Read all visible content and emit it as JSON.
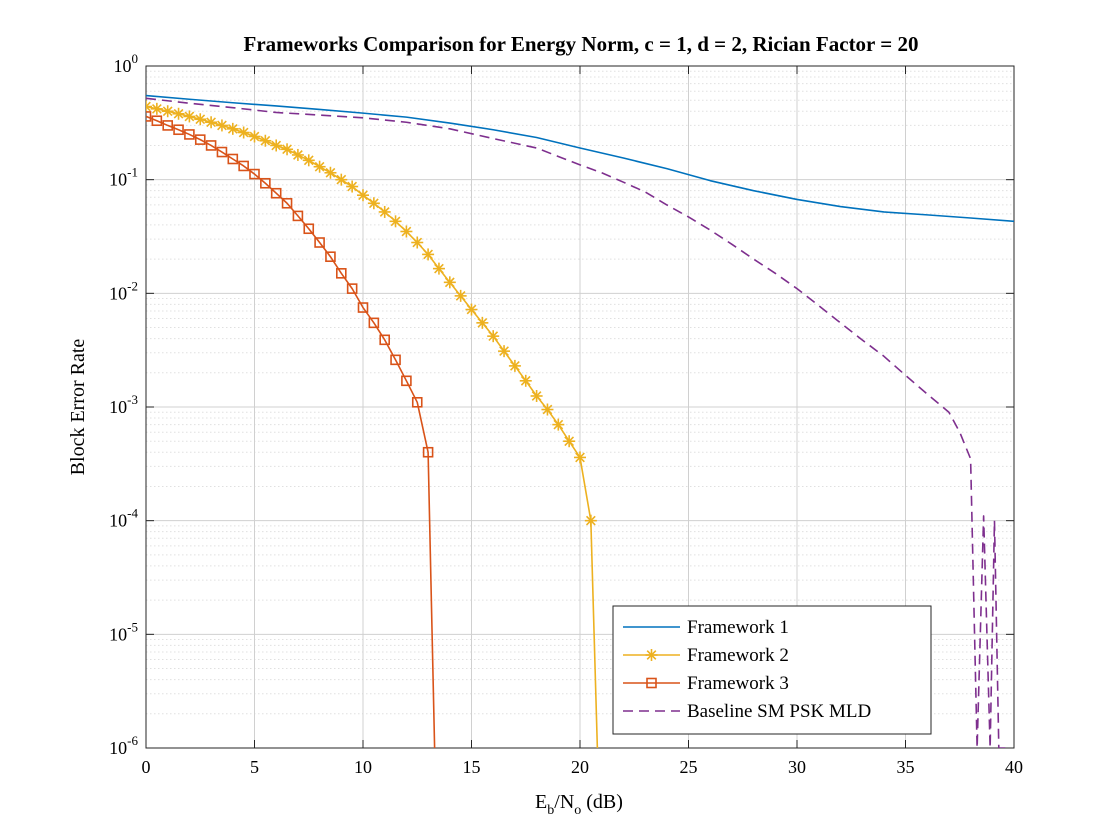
{
  "chart_data": {
    "type": "line",
    "title": "Frameworks Comparison for Energy Norm, c = 1, d = 2, Rician Factor = 20",
    "xlabel": {
      "base": "E",
      "sub1": "b",
      "mid": "/N",
      "sub2": "o",
      "tail": " (dB)"
    },
    "ylabel": "Block Error Rate",
    "xlim": [
      0,
      40
    ],
    "ylim": [
      1e-06,
      1
    ],
    "yscale": "log",
    "grid": true,
    "legend_position": "bottom-right",
    "x_ticks": [
      {
        "value": 0,
        "label": "0"
      },
      {
        "value": 5,
        "label": "5"
      },
      {
        "value": 10,
        "label": "10"
      },
      {
        "value": 15,
        "label": "15"
      },
      {
        "value": 20,
        "label": "20"
      },
      {
        "value": 25,
        "label": "25"
      },
      {
        "value": 30,
        "label": "30"
      },
      {
        "value": 35,
        "label": "35"
      },
      {
        "value": 40,
        "label": "40"
      }
    ],
    "y_ticks": [
      {
        "exp": 0,
        "base": "10",
        "power": "0"
      },
      {
        "exp": -1,
        "base": "10",
        "power": "-1"
      },
      {
        "exp": -2,
        "base": "10",
        "power": "-2"
      },
      {
        "exp": -3,
        "base": "10",
        "power": "-3"
      },
      {
        "exp": -4,
        "base": "10",
        "power": "-4"
      },
      {
        "exp": -5,
        "base": "10",
        "power": "-5"
      },
      {
        "exp": -6,
        "base": "10",
        "power": "-6"
      }
    ],
    "series": [
      {
        "name": "Framework 1",
        "color": "#0072BD",
        "line": "solid",
        "marker": "none",
        "x": [
          0,
          2,
          4,
          6,
          8,
          10,
          12,
          14,
          16,
          18,
          20,
          22,
          24,
          26,
          28,
          30,
          32,
          34,
          36,
          38,
          40
        ],
        "y": [
          0.55,
          0.51,
          0.475,
          0.445,
          0.415,
          0.385,
          0.355,
          0.315,
          0.275,
          0.235,
          0.19,
          0.155,
          0.125,
          0.098,
          0.08,
          0.067,
          0.058,
          0.052,
          0.049,
          0.046,
          0.043
        ]
      },
      {
        "name": "Framework 2",
        "color": "#EDB120",
        "line": "solid",
        "marker": "asterisk",
        "x": [
          0,
          0.5,
          1,
          1.5,
          2,
          2.5,
          3,
          3.5,
          4,
          4.5,
          5,
          5.5,
          6,
          6.5,
          7,
          7.5,
          8,
          8.5,
          9,
          9.5,
          10,
          10.5,
          11,
          11.5,
          12,
          12.5,
          13,
          13.5,
          14,
          14.5,
          15,
          15.5,
          16,
          16.5,
          17,
          17.5,
          18,
          18.5,
          19,
          19.5,
          20,
          20.5,
          20.8
        ],
        "y": [
          0.44,
          0.42,
          0.4,
          0.38,
          0.36,
          0.34,
          0.32,
          0.3,
          0.28,
          0.26,
          0.24,
          0.22,
          0.2,
          0.185,
          0.165,
          0.148,
          0.13,
          0.115,
          0.1,
          0.087,
          0.073,
          0.062,
          0.052,
          0.043,
          0.035,
          0.028,
          0.022,
          0.0165,
          0.0125,
          0.0095,
          0.0072,
          0.0055,
          0.0042,
          0.0031,
          0.0023,
          0.0017,
          0.00125,
          0.00095,
          0.0007,
          0.0005,
          0.00036,
          0.0001,
          1e-06
        ]
      },
      {
        "name": "Framework 3",
        "color": "#D95319",
        "line": "solid",
        "marker": "square",
        "x": [
          0,
          0.5,
          1,
          1.5,
          2,
          2.5,
          3,
          3.5,
          4,
          4.5,
          5,
          5.5,
          6,
          6.5,
          7,
          7.5,
          8,
          8.5,
          9,
          9.5,
          10,
          10.5,
          11,
          11.5,
          12,
          12.5,
          13,
          13.3
        ],
        "y": [
          0.36,
          0.33,
          0.3,
          0.275,
          0.25,
          0.225,
          0.2,
          0.175,
          0.152,
          0.132,
          0.112,
          0.093,
          0.076,
          0.062,
          0.048,
          0.037,
          0.028,
          0.021,
          0.015,
          0.011,
          0.0075,
          0.0055,
          0.0039,
          0.0026,
          0.0017,
          0.0011,
          0.0004,
          1e-06
        ]
      },
      {
        "name": "Baseline SM PSK MLD",
        "color": "#7E2F8E",
        "line": "dashed",
        "marker": "none",
        "x": [
          0,
          2,
          4,
          6,
          8,
          9,
          10,
          12,
          14,
          16,
          18,
          19,
          20,
          21,
          22,
          23,
          24,
          25,
          26,
          27,
          28,
          29,
          30,
          31,
          32,
          33,
          34,
          35,
          36,
          37,
          37.5,
          38,
          38.3,
          38.6,
          38.9,
          39.1,
          39.3,
          39.6
        ],
        "y": [
          0.52,
          0.47,
          0.43,
          0.39,
          0.37,
          0.36,
          0.35,
          0.32,
          0.28,
          0.23,
          0.19,
          0.16,
          0.135,
          0.115,
          0.095,
          0.078,
          0.06,
          0.047,
          0.036,
          0.027,
          0.02,
          0.015,
          0.011,
          0.0078,
          0.0055,
          0.0039,
          0.0028,
          0.0019,
          0.0013,
          0.0009,
          0.0006,
          0.00035,
          1e-06,
          0.00011,
          1e-06,
          0.0001,
          1e-06,
          1e-06
        ]
      }
    ]
  }
}
